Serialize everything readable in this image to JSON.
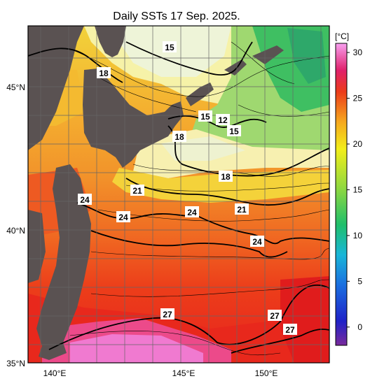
{
  "title": "Daily SSTs 17 Sep. 2025.",
  "colorbar": {
    "unit": "[°C]",
    "ticks": [
      "30",
      "25",
      "20",
      "15",
      "10",
      "5",
      "0"
    ],
    "vmin": -2,
    "vmax": 31
  },
  "axes": {
    "lon_ticks": [
      "140°E",
      "145°E",
      "150°E"
    ],
    "lat_ticks": [
      "45°N",
      "40°N",
      "35°N"
    ]
  },
  "contour_labels": [
    "15",
    "18",
    "15",
    "12",
    "15",
    "18",
    "18",
    "21",
    "24",
    "24",
    "24",
    "21",
    "24",
    "27",
    "27",
    "27"
  ],
  "colors": {
    "land": "#5a5252",
    "grid": "#666666",
    "contour": "#000000"
  }
}
